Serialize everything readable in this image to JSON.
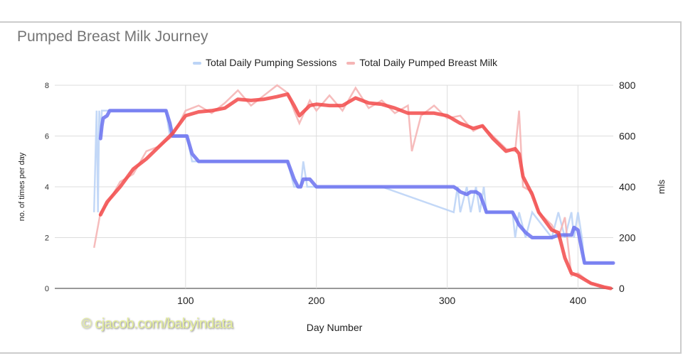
{
  "chart_data": {
    "type": "line",
    "title": "Pumped Breast Milk Journey",
    "xlabel": "Day Number",
    "ylabel_left": "no. of times per day",
    "ylabel_right": "mls",
    "xlim": [
      0,
      427
    ],
    "ylim_left": [
      0,
      8
    ],
    "ylim_right": [
      0,
      800
    ],
    "x_ticks": [
      100,
      200,
      300,
      400
    ],
    "y_ticks_left": [
      0,
      2,
      4,
      6,
      8
    ],
    "y_ticks_right": [
      0,
      200,
      400,
      600,
      800
    ],
    "grid": true,
    "legend_position": "top",
    "watermark": "© cjacob.com/babyindata",
    "series": [
      {
        "name": "Total Daily Pumping Sessions",
        "axis": "left",
        "color": "#bcd4f6",
        "smoothed_color": "#6b72f0",
        "x": [
          30,
          32,
          33,
          34,
          35,
          36,
          37,
          40,
          42,
          60,
          85,
          88,
          90,
          95,
          99,
          101,
          105,
          110,
          150,
          178,
          183,
          186,
          188,
          190,
          193,
          195,
          200,
          250,
          305,
          308,
          310,
          315,
          318,
          322,
          325,
          328,
          330,
          350,
          352,
          355,
          360,
          365,
          380,
          385,
          390,
          395,
          397,
          400,
          403,
          405,
          427
        ],
        "raw": [
          3,
          7,
          3,
          7,
          6,
          7,
          7,
          7,
          7,
          7,
          7,
          6,
          6,
          6,
          6,
          6,
          5,
          5,
          5,
          5,
          4,
          4,
          4,
          5,
          4,
          4,
          4,
          4,
          3,
          4,
          3,
          4,
          3,
          4,
          3,
          4,
          3,
          3,
          2,
          3,
          2,
          3,
          2,
          3,
          2,
          3,
          2,
          3,
          2,
          1,
          1
        ],
        "smoothed": [
          null,
          null,
          null,
          null,
          5.9,
          6.4,
          6.7,
          6.8,
          7,
          7,
          7,
          6.5,
          6,
          6,
          6,
          6,
          5.3,
          5,
          5,
          5,
          4.3,
          4,
          4,
          4.3,
          4.3,
          4.3,
          4,
          4,
          4,
          3.9,
          3.8,
          3.7,
          3.8,
          3.8,
          3.7,
          3.3,
          3,
          3,
          2.8,
          2.5,
          2.2,
          2,
          2,
          2.1,
          2.1,
          2.1,
          2.4,
          2.3,
          1.5,
          1,
          1
        ]
      },
      {
        "name": "Total Daily Pumped Breast Milk",
        "axis": "right",
        "color": "#f5b5b5",
        "smoothed_color": "#f24a4a",
        "x": [
          30,
          35,
          40,
          50,
          60,
          70,
          80,
          90,
          100,
          110,
          120,
          130,
          140,
          150,
          160,
          170,
          178,
          183,
          187,
          195,
          200,
          210,
          220,
          230,
          240,
          250,
          260,
          270,
          273,
          280,
          290,
          300,
          310,
          320,
          327,
          335,
          345,
          352,
          355,
          358,
          365,
          370,
          380,
          385,
          390,
          395,
          400,
          410,
          420,
          425
        ],
        "raw": [
          160,
          300,
          330,
          420,
          450,
          540,
          560,
          600,
          700,
          720,
          690,
          730,
          780,
          720,
          760,
          800,
          770,
          700,
          650,
          740,
          700,
          760,
          700,
          790,
          710,
          740,
          690,
          720,
          540,
          680,
          720,
          670,
          680,
          620,
          640,
          600,
          550,
          540,
          700,
          400,
          380,
          300,
          250,
          200,
          280,
          50,
          60,
          20,
          5,
          0
        ],
        "smoothed": [
          null,
          290,
          340,
          400,
          470,
          510,
          560,
          610,
          680,
          695,
          700,
          710,
          745,
          740,
          745,
          755,
          765,
          720,
          680,
          720,
          725,
          720,
          720,
          750,
          730,
          725,
          710,
          690,
          690,
          690,
          690,
          680,
          650,
          630,
          640,
          590,
          540,
          550,
          530,
          440,
          370,
          300,
          230,
          220,
          120,
          60,
          50,
          20,
          5,
          0
        ]
      }
    ]
  }
}
